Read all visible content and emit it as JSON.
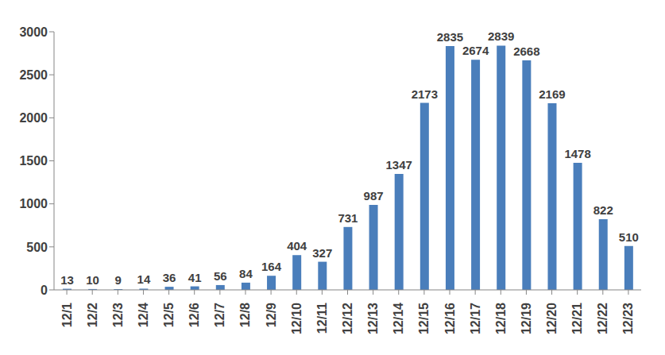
{
  "chart_data": {
    "type": "bar",
    "categories": [
      "12/1",
      "12/2",
      "12/3",
      "12/4",
      "12/5",
      "12/6",
      "12/7",
      "12/8",
      "12/9",
      "12/10",
      "12/11",
      "12/12",
      "12/13",
      "12/14",
      "12/15",
      "12/16",
      "12/17",
      "12/18",
      "12/19",
      "12/20",
      "12/21",
      "12/22",
      "12/23"
    ],
    "values": [
      13,
      10,
      9,
      14,
      36,
      41,
      56,
      84,
      164,
      404,
      327,
      731,
      987,
      1347,
      2173,
      2835,
      2674,
      2839,
      2668,
      2169,
      1478,
      822,
      510
    ],
    "color": "#4a7ebb",
    "ylim": [
      0,
      3000
    ],
    "yticks": [
      0,
      500,
      1000,
      1500,
      2000,
      2500,
      3000
    ],
    "grid": false,
    "data_labels": true
  }
}
